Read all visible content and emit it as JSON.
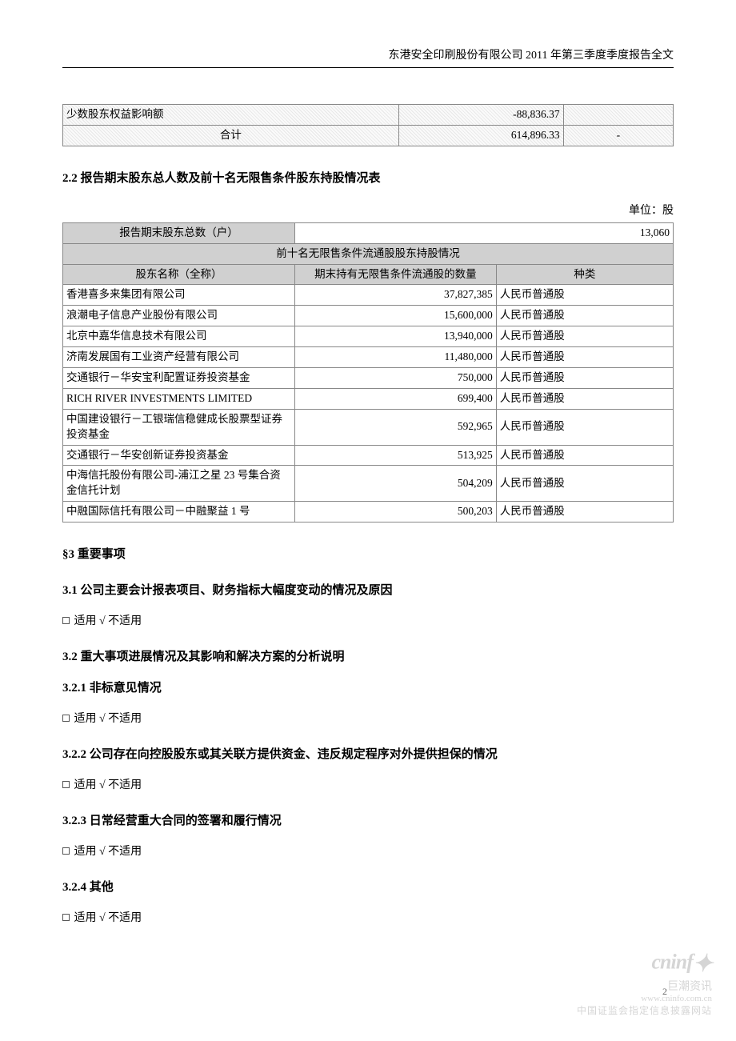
{
  "header": "东港安全印刷股份有限公司 2011 年第三季度季度报告全文",
  "table1": {
    "rows": [
      {
        "label": "少数股东权益影响额",
        "v1": "-88,836.37",
        "v2": ""
      },
      {
        "label": "合计",
        "v1": "614,896.33",
        "v2": "-",
        "labelCenter": true
      }
    ],
    "col_widths": [
      "55%",
      "27%",
      "18%"
    ]
  },
  "s22_title": "2.2 报告期末股东总人数及前十名无限售条件股东持股情况表",
  "unit": "单位：股",
  "table2": {
    "total_label": "报告期末股东总数（户）",
    "total_value": "13,060",
    "subtitle": "前十名无限售条件流通股股东持股情况",
    "headers": [
      "股东名称（全称）",
      "期末持有无限售条件流通股的数量",
      "种类"
    ],
    "rows": [
      {
        "name": "香港喜多来集团有限公司",
        "qty": "37,827,385",
        "type": "人民币普通股"
      },
      {
        "name": "浪潮电子信息产业股份有限公司",
        "qty": "15,600,000",
        "type": "人民币普通股"
      },
      {
        "name": "北京中嘉华信息技术有限公司",
        "qty": "13,940,000",
        "type": "人民币普通股"
      },
      {
        "name": "济南发展国有工业资产经营有限公司",
        "qty": "11,480,000",
        "type": "人民币普通股"
      },
      {
        "name": "交通银行－华安宝利配置证券投资基金",
        "qty": "750,000",
        "type": "人民币普通股"
      },
      {
        "name": "RICH RIVER INVESTMENTS LIMITED",
        "qty": "699,400",
        "type": "人民币普通股"
      },
      {
        "name": "中国建设银行－工银瑞信稳健成长股票型证券投资基金",
        "qty": "592,965",
        "type": "人民币普通股"
      },
      {
        "name": "交通银行－华安创新证券投资基金",
        "qty": "513,925",
        "type": "人民币普通股"
      },
      {
        "name": "中海信托股份有限公司-浦江之星 23 号集合资金信托计划",
        "qty": "504,209",
        "type": "人民币普通股"
      },
      {
        "name": "中融国际信托有限公司－中融聚益 1 号",
        "qty": "500,203",
        "type": "人民币普通股"
      }
    ],
    "col_widths": [
      "38%",
      "33%",
      "29%"
    ]
  },
  "s3_title": "§3  重要事项",
  "s31_title": "3.1 公司主要会计报表项目、财务指标大幅度变动的情况及原因",
  "s32_title": "3.2 重大事项进展情况及其影响和解决方案的分析说明",
  "s321_title": "3.2.1 非标意见情况",
  "s322_title": "3.2.2 公司存在向控股股东或其关联方提供资金、违反规定程序对外提供担保的情况",
  "s323_title": "3.2.3 日常经营重大合同的签署和履行情况",
  "s324_title": "3.2.4 其他",
  "cb_text": " 适用 √ 不适用",
  "page_num": "2",
  "wm": {
    "logo": "cninf",
    "sub1": "巨潮资讯",
    "sub2": "www.cninfo.com.cn",
    "sub3": "中国证监会指定信息披露网站"
  }
}
